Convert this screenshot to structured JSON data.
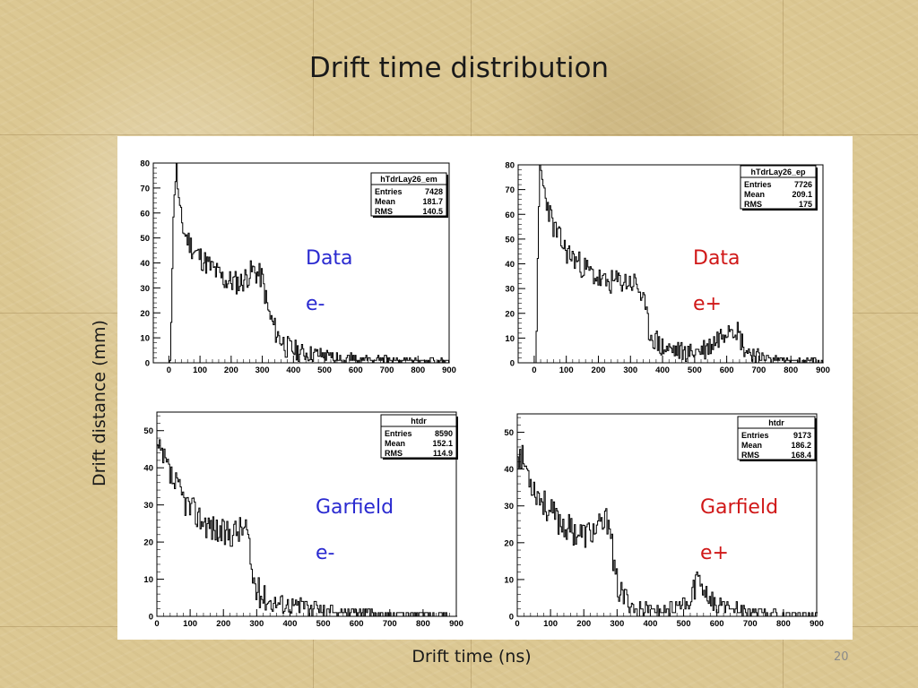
{
  "slide": {
    "title": "Drift time distribution",
    "y_axis_label": "Drift distance (mm)",
    "x_axis_label": "Drift time (ns)",
    "page_number": "20"
  },
  "colors": {
    "data_label": "#2a2ad0",
    "positron_label": "#d01818",
    "histogram": "#000000"
  },
  "chart_data": [
    {
      "type": "bar",
      "id": "data-em",
      "annotation": [
        "Data",
        "e-"
      ],
      "annotation_color": "data_label",
      "stats": {
        "name": "hTdrLay26_em",
        "rows": [
          [
            "Entries",
            "7428"
          ],
          [
            "Mean",
            "181.7"
          ],
          [
            "RMS",
            "140.5"
          ]
        ]
      },
      "xlim": [
        -50,
        900
      ],
      "ylim": [
        0,
        80
      ],
      "x_ticks": [
        0,
        100,
        200,
        300,
        400,
        500,
        600,
        700,
        800,
        900
      ],
      "y_ticks": [
        0,
        10,
        20,
        30,
        40,
        50,
        60,
        70,
        80
      ],
      "profile": [
        [
          -50,
          0
        ],
        [
          0,
          0
        ],
        [
          5,
          2
        ],
        [
          10,
          35
        ],
        [
          18,
          70
        ],
        [
          25,
          78
        ],
        [
          35,
          60
        ],
        [
          50,
          52
        ],
        [
          80,
          45
        ],
        [
          120,
          40
        ],
        [
          180,
          33
        ],
        [
          230,
          32
        ],
        [
          270,
          37
        ],
        [
          300,
          34
        ],
        [
          320,
          20
        ],
        [
          345,
          12
        ],
        [
          380,
          6
        ],
        [
          430,
          4
        ],
        [
          500,
          3
        ],
        [
          600,
          2
        ],
        [
          700,
          1.5
        ],
        [
          800,
          1
        ],
        [
          900,
          1
        ]
      ],
      "noise": 5,
      "seed": 11
    },
    {
      "type": "bar",
      "id": "data-ep",
      "annotation": [
        "Data",
        "e+"
      ],
      "annotation_color": "positron_label",
      "stats": {
        "name": "hTdrLay26_ep",
        "rows": [
          [
            "Entries",
            "7726"
          ],
          [
            "Mean",
            "209.1"
          ],
          [
            "RMS",
            "175"
          ]
        ]
      },
      "xlim": [
        -50,
        900
      ],
      "ylim": [
        0,
        80
      ],
      "x_ticks": [
        0,
        100,
        200,
        300,
        400,
        500,
        600,
        700,
        800,
        900
      ],
      "y_ticks": [
        0,
        10,
        20,
        30,
        40,
        50,
        60,
        70,
        80
      ],
      "profile": [
        [
          -50,
          0
        ],
        [
          5,
          0
        ],
        [
          10,
          30
        ],
        [
          18,
          80
        ],
        [
          30,
          70
        ],
        [
          60,
          55
        ],
        [
          100,
          45
        ],
        [
          160,
          38
        ],
        [
          220,
          32
        ],
        [
          270,
          33
        ],
        [
          320,
          32
        ],
        [
          340,
          25
        ],
        [
          360,
          12
        ],
        [
          400,
          6
        ],
        [
          480,
          4
        ],
        [
          540,
          6
        ],
        [
          580,
          11
        ],
        [
          610,
          16
        ],
        [
          630,
          14
        ],
        [
          660,
          5
        ],
        [
          720,
          2
        ],
        [
          800,
          1
        ],
        [
          900,
          1
        ]
      ],
      "noise": 5,
      "seed": 23
    },
    {
      "type": "bar",
      "id": "garfield-em",
      "annotation": [
        "Garfield",
        "e-"
      ],
      "annotation_color": "data_label",
      "stats": {
        "name": "htdr",
        "rows": [
          [
            "Entries",
            "8590"
          ],
          [
            "Mean",
            "152.1"
          ],
          [
            "RMS",
            "114.9"
          ]
        ]
      },
      "xlim": [
        0,
        900
      ],
      "ylim": [
        0,
        55
      ],
      "x_ticks": [
        0,
        100,
        200,
        300,
        400,
        500,
        600,
        700,
        800,
        900
      ],
      "y_ticks": [
        0,
        10,
        20,
        30,
        40,
        50
      ],
      "profile": [
        [
          0,
          45
        ],
        [
          20,
          42
        ],
        [
          50,
          36
        ],
        [
          100,
          29
        ],
        [
          150,
          25
        ],
        [
          200,
          22
        ],
        [
          240,
          23
        ],
        [
          270,
          24
        ],
        [
          285,
          12
        ],
        [
          300,
          7
        ],
        [
          340,
          4
        ],
        [
          420,
          3
        ],
        [
          520,
          2
        ],
        [
          650,
          1
        ],
        [
          800,
          0.5
        ],
        [
          900,
          0.3
        ]
      ],
      "noise": 4,
      "seed": 37
    },
    {
      "type": "bar",
      "id": "garfield-ep",
      "annotation": [
        "Garfield",
        "e+"
      ],
      "annotation_color": "positron_label",
      "stats": {
        "name": "htdr",
        "rows": [
          [
            "Entries",
            "9173"
          ],
          [
            "Mean",
            "186.2"
          ],
          [
            "RMS",
            "168.4"
          ]
        ]
      },
      "xlim": [
        0,
        900
      ],
      "ylim": [
        0,
        55
      ],
      "x_ticks": [
        0,
        100,
        200,
        300,
        400,
        500,
        600,
        700,
        800,
        900
      ],
      "y_ticks": [
        0,
        10,
        20,
        30,
        40,
        50
      ],
      "profile": [
        [
          0,
          45
        ],
        [
          20,
          42
        ],
        [
          50,
          35
        ],
        [
          100,
          28
        ],
        [
          150,
          24
        ],
        [
          200,
          22
        ],
        [
          250,
          24
        ],
        [
          280,
          27
        ],
        [
          290,
          12
        ],
        [
          310,
          6
        ],
        [
          350,
          3
        ],
        [
          450,
          2
        ],
        [
          520,
          3
        ],
        [
          540,
          11
        ],
        [
          560,
          8
        ],
        [
          600,
          3
        ],
        [
          700,
          1.5
        ],
        [
          800,
          1
        ],
        [
          900,
          0.5
        ]
      ],
      "noise": 4,
      "seed": 53
    }
  ]
}
